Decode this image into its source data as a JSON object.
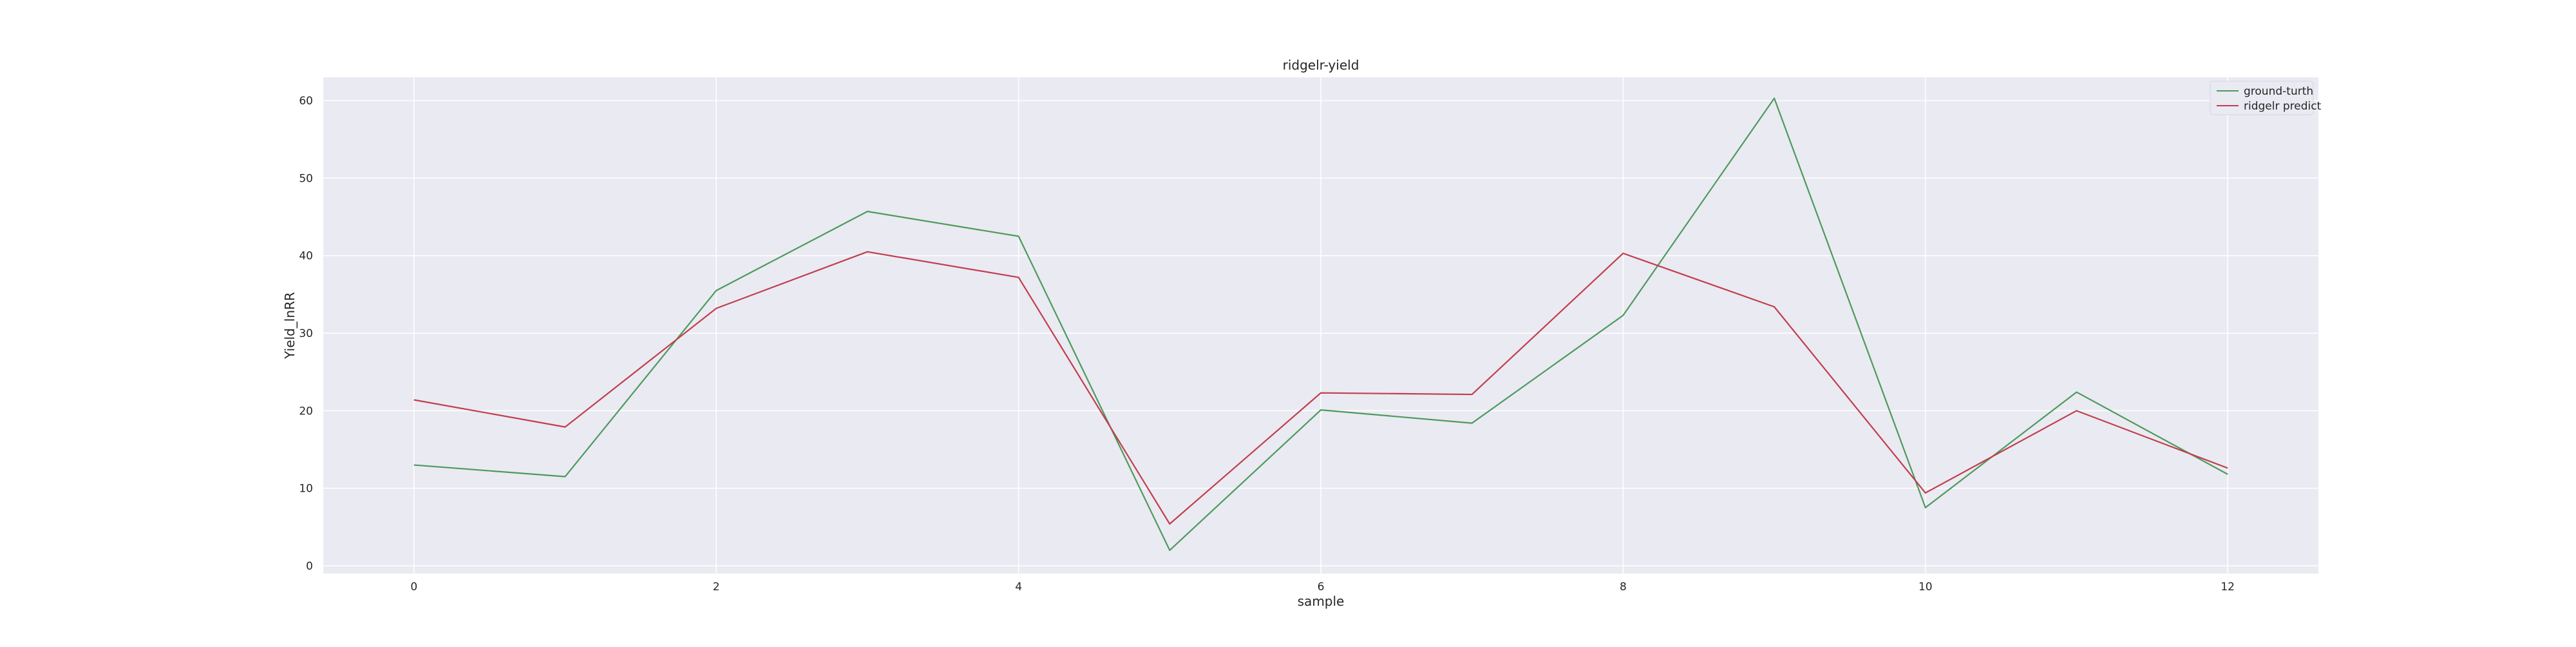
{
  "chart_data": {
    "type": "line",
    "title": "ridgelr-yield",
    "xlabel": "sample",
    "ylabel": "Yield_lnRR",
    "x": [
      0,
      1,
      2,
      3,
      4,
      5,
      6,
      7,
      8,
      9,
      10,
      11,
      12
    ],
    "xlim": [
      -0.6,
      12.6
    ],
    "ylim": [
      -1,
      63
    ],
    "xticks": [
      0,
      2,
      4,
      6,
      8,
      10,
      12
    ],
    "yticks": [
      0,
      10,
      20,
      30,
      40,
      50,
      60
    ],
    "grid": true,
    "legend_position": "top-right",
    "series": [
      {
        "name": "ground-turth",
        "color": "#4c9a5c",
        "values": [
          13.0,
          11.5,
          35.5,
          45.7,
          42.5,
          2.0,
          20.1,
          18.4,
          32.3,
          60.3,
          7.5,
          22.4,
          11.8
        ]
      },
      {
        "name": "ridgelr predict",
        "color": "#c13e4e",
        "values": [
          21.4,
          17.9,
          33.2,
          40.5,
          37.2,
          5.4,
          22.3,
          22.1,
          40.3,
          33.4,
          9.4,
          20.0,
          12.6
        ]
      }
    ],
    "colors": {
      "plot_background": "#eaeaf2",
      "grid": "#ffffff"
    }
  }
}
